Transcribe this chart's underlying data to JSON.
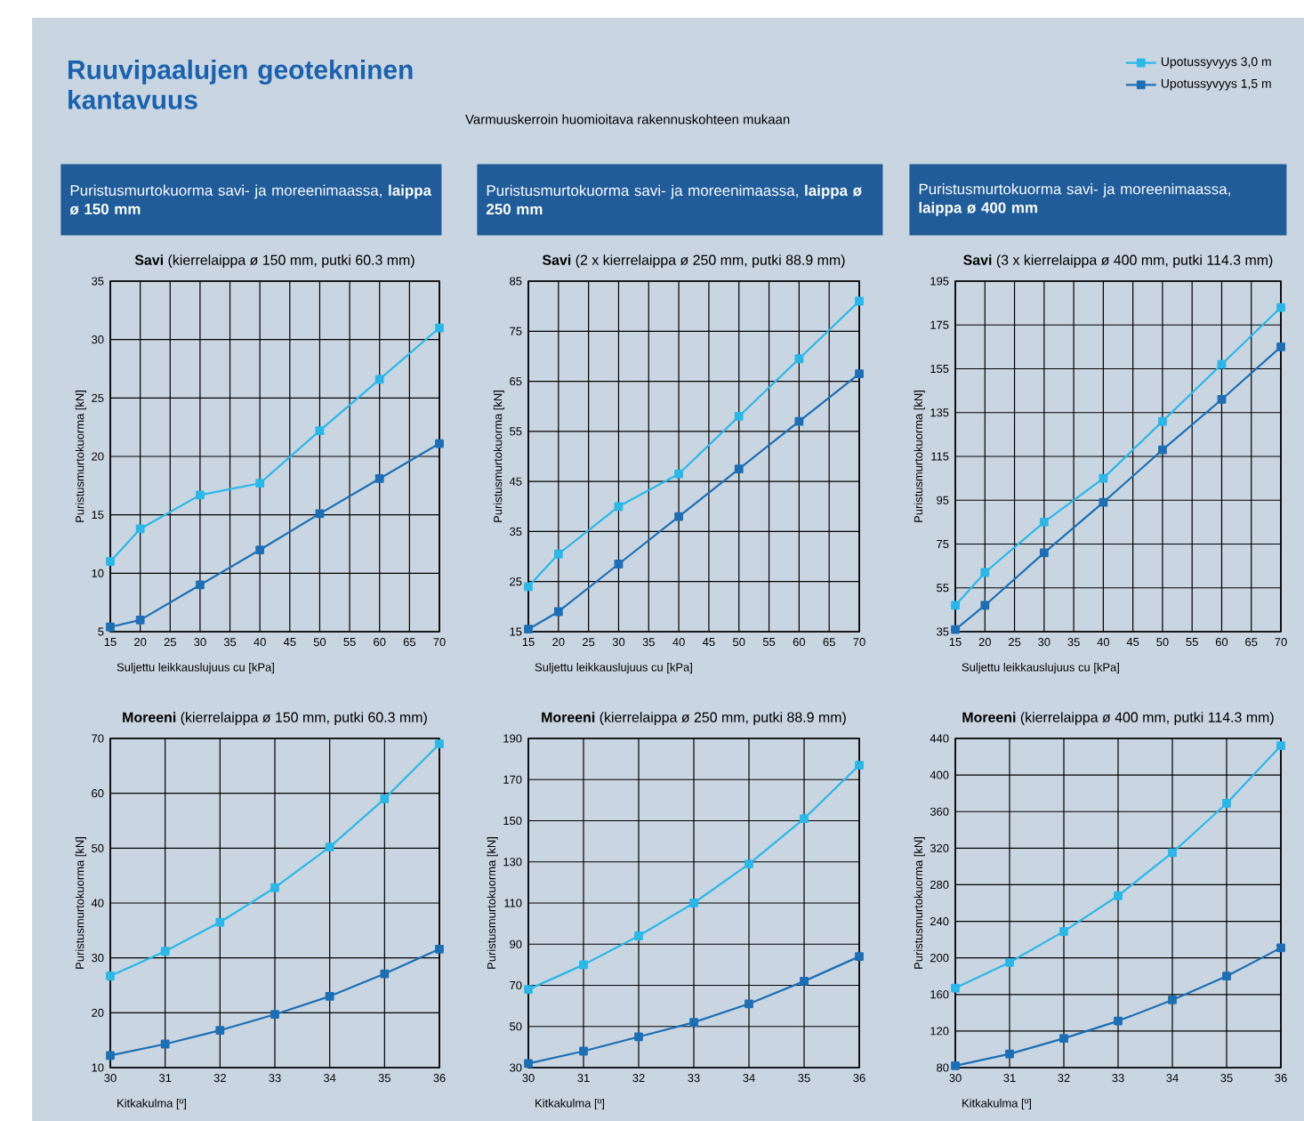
{
  "chart_data": [
    {
      "type": "line",
      "title": "Puristusmurtokuorma savi- ja moreenimaassa, **laippa ø 150 mm**",
      "subtitle": "**Savi** (kierrelaippa ø 150 mm, putki 60.3 mm)",
      "xlabel": "Suljettu leikkauslujuus cu [kPa]",
      "ylabel": "Puristusmurtokuorma [kN]",
      "annotations": [
        "Ruuvipaalujen geotekninen kantavuus",
        "Varmuuskerroin huomioitava rakennuskohteen mukaan"
      ],
      "x": [
        15,
        20,
        30,
        40,
        50,
        60,
        70
      ],
      "xlim": [
        15,
        70
      ],
      "xticks": [
        15,
        20,
        25,
        30,
        35,
        40,
        45,
        50,
        55,
        60,
        65,
        70
      ],
      "ylim": [
        5,
        35
      ],
      "yticks": [
        5,
        10,
        15,
        20,
        25,
        30,
        35
      ],
      "grid": true,
      "marker": "square",
      "line_style": "solid",
      "series": [
        {
          "color": "#29b8e8",
          "values": [
            11,
            13.8,
            16.7,
            17.7,
            22.2,
            26.6,
            31
          ]
        },
        {
          "color": "#1d6fb5",
          "values": [
            5.4,
            6,
            9,
            12,
            15.1,
            18.1,
            21.1
          ]
        }
      ]
    },
    {
      "type": "line",
      "title": "Puristusmurtokuorma savi- ja moreenimaassa, **laippa ø 250 mm**",
      "subtitle": "**Savi** (2 x kierrelaippa ø 250 mm, putki 88.9 mm)",
      "xlabel": "Suljettu leikkauslujuus cu [kPa]",
      "ylabel": "Puristusmurtokuorma [kN]",
      "x": [
        15,
        20,
        30,
        40,
        50,
        60,
        70
      ],
      "xlim": [
        15,
        70
      ],
      "xticks": [
        15,
        20,
        25,
        30,
        35,
        40,
        45,
        50,
        55,
        60,
        65,
        70
      ],
      "ylim": [
        15,
        85
      ],
      "yticks": [
        15,
        25,
        35,
        45,
        55,
        65,
        75,
        85
      ],
      "grid": true,
      "marker": "square",
      "line_style": "solid",
      "series": [
        {
          "color": "#29b8e8",
          "values": [
            24,
            30.5,
            40,
            46.5,
            58,
            69.5,
            81
          ]
        },
        {
          "color": "#1d6fb5",
          "values": [
            15.5,
            19,
            28.5,
            38,
            47.5,
            57,
            66.5
          ]
        }
      ]
    },
    {
      "type": "line",
      "title": "Puristusmurtokuorma savi- ja moreenimaassa, **laippa ø 400 mm**",
      "subtitle": "**Savi** (3 x kierrelaippa ø 400 mm, putki 114.3 mm)",
      "xlabel": "Suljettu leikkauslujuus cu [kPa]",
      "ylabel": "Puristusmurtokuorma [kN]",
      "x": [
        15,
        20,
        30,
        40,
        50,
        60,
        70
      ],
      "xlim": [
        15,
        70
      ],
      "xticks": [
        15,
        20,
        25,
        30,
        35,
        40,
        45,
        50,
        55,
        60,
        65,
        70
      ],
      "ylim": [
        35,
        195
      ],
      "yticks": [
        35,
        55,
        75,
        95,
        115,
        135,
        155,
        175,
        195
      ],
      "grid": true,
      "marker": "square",
      "line_style": "solid",
      "legend": "top",
      "series": [
        {
          "name": "Upotussyvyys 3,0 m",
          "color": "#29b8e8",
          "values": [
            47,
            62,
            85,
            105,
            131,
            157,
            183
          ]
        },
        {
          "name": "Upotussyvyys 1,5 m",
          "color": "#1d6fb5",
          "values": [
            36,
            47,
            71,
            94,
            118,
            141,
            165
          ]
        }
      ]
    },
    {
      "type": "line",
      "subtitle": "**Moreeni** (kierrelaippa ø 150 mm, putki 60.3 mm)",
      "xlabel": "Kitkakulma [º]",
      "ylabel": "Puristusmurtokuorma [kN]",
      "x": [
        30,
        31,
        32,
        33,
        34,
        35,
        36
      ],
      "xlim": [
        30,
        36
      ],
      "xticks": [
        30,
        31,
        32,
        33,
        34,
        35,
        36
      ],
      "ylim": [
        10,
        70
      ],
      "yticks": [
        10,
        20,
        30,
        40,
        50,
        60,
        70
      ],
      "grid": true,
      "marker": "square",
      "line_style": "solid",
      "series": [
        {
          "color": "#29b8e8",
          "values": [
            26.7,
            31.2,
            36.5,
            42.8,
            50.2,
            59,
            69
          ]
        },
        {
          "color": "#1d6fb5",
          "values": [
            12.2,
            14.3,
            16.8,
            19.7,
            23,
            27.1,
            31.6
          ]
        }
      ]
    },
    {
      "type": "line",
      "subtitle": "**Moreeni** (kierrelaippa ø 250 mm, putki 88.9 mm)",
      "xlabel": "Kitkakulma [º]",
      "ylabel": "Puristusmurtokuorma [kN]",
      "x": [
        30,
        31,
        32,
        33,
        34,
        35,
        36
      ],
      "xlim": [
        30,
        36
      ],
      "xticks": [
        30,
        31,
        32,
        33,
        34,
        35,
        36
      ],
      "ylim": [
        30,
        190
      ],
      "yticks": [
        30,
        50,
        70,
        90,
        110,
        130,
        150,
        170,
        190
      ],
      "grid": true,
      "marker": "square",
      "line_style": "solid",
      "series": [
        {
          "color": "#29b8e8",
          "values": [
            68,
            80,
            94,
            110,
            129,
            151,
            177
          ]
        },
        {
          "color": "#1d6fb5",
          "values": [
            32,
            38,
            45,
            52,
            61,
            72,
            84
          ]
        }
      ]
    },
    {
      "type": "line",
      "subtitle": "**Moreeni** (kierrelaippa ø 400 mm, putki 114.3 mm)",
      "xlabel": "Kitkakulma [º]",
      "ylabel": "Puristusmurtokuorma [kN]",
      "x": [
        30,
        31,
        32,
        33,
        34,
        35,
        36
      ],
      "xlim": [
        30,
        36
      ],
      "xticks": [
        30,
        31,
        32,
        33,
        34,
        35,
        36
      ],
      "ylim": [
        80,
        440
      ],
      "yticks": [
        80,
        120,
        160,
        200,
        240,
        280,
        320,
        360,
        400,
        440
      ],
      "grid": true,
      "marker": "square",
      "line_style": "solid",
      "series": [
        {
          "color": "#29b8e8",
          "values": [
            167,
            195,
            229,
            268,
            315,
            369,
            432
          ]
        },
        {
          "color": "#1d6fb5",
          "values": [
            82,
            95,
            112,
            131,
            154,
            180,
            211
          ]
        }
      ]
    }
  ]
}
